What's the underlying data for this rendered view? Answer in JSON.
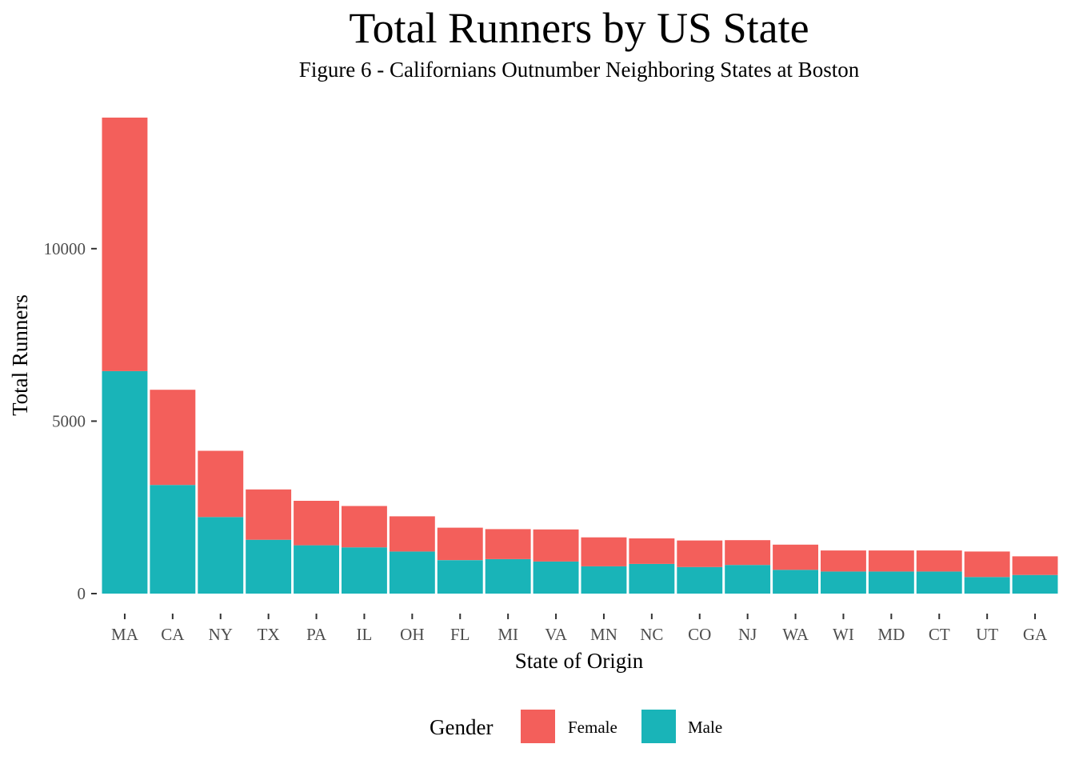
{
  "chart_data": {
    "type": "bar",
    "stacked": true,
    "title": "Total Runners by US State",
    "subtitle": "Figure 6 - Californians Outnumber Neighboring States at Boston",
    "xlabel": "State of Origin",
    "ylabel": "Total Runners",
    "categories": [
      "MA",
      "CA",
      "NY",
      "TX",
      "PA",
      "IL",
      "OH",
      "FL",
      "MI",
      "VA",
      "MN",
      "NC",
      "CO",
      "NJ",
      "WA",
      "WI",
      "MD",
      "CT",
      "UT",
      "GA"
    ],
    "series": [
      {
        "name": "Male",
        "color": "#19b4b8",
        "values": [
          6450,
          3150,
          2220,
          1560,
          1400,
          1340,
          1220,
          970,
          1000,
          930,
          790,
          860,
          770,
          830,
          690,
          640,
          640,
          640,
          480,
          540
        ]
      },
      {
        "name": "Female",
        "color": "#f35f5b",
        "values": [
          7350,
          2760,
          1920,
          1460,
          1290,
          1200,
          1020,
          940,
          870,
          930,
          840,
          740,
          770,
          720,
          730,
          610,
          610,
          610,
          740,
          540
        ]
      }
    ],
    "ylim": [
      0,
      13800
    ],
    "yticks": [
      0,
      5000,
      10000
    ],
    "legend": {
      "title": "Gender",
      "position": "bottom",
      "entries": [
        "Female",
        "Male"
      ]
    },
    "grid": false
  }
}
